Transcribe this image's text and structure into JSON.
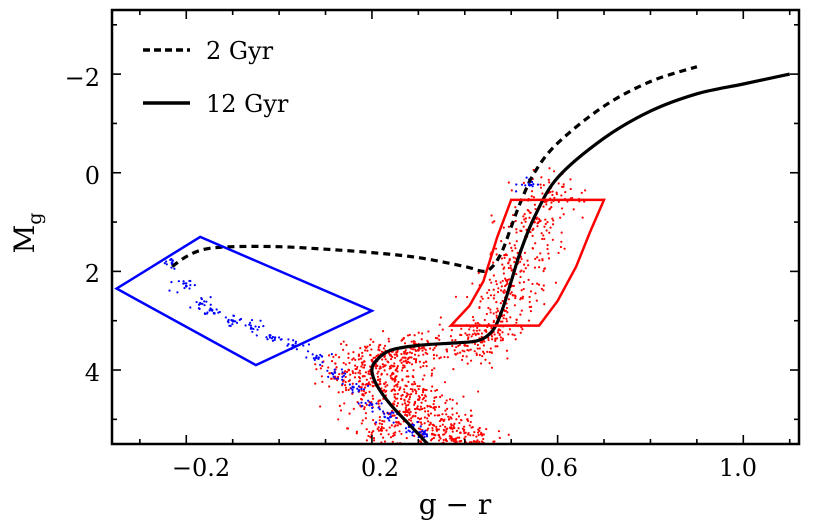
{
  "chart_data": {
    "type": "scatter",
    "title": "",
    "xlabel": "g − r",
    "ylabel_base": "M",
    "ylabel_sub": "g",
    "xlim": [
      -0.36,
      1.12
    ],
    "ylim": [
      5.5,
      -3.3
    ],
    "y_inverted": true,
    "x_ticks": [
      -0.2,
      0.2,
      0.6,
      1.0
    ],
    "x_tick_labels": [
      "−0.2",
      "0.2",
      "0.6",
      "1.0"
    ],
    "y_ticks": [
      -2,
      0,
      2,
      4
    ],
    "y_tick_labels": [
      "−2",
      "0",
      "2",
      "4"
    ],
    "legend_position": "top-left",
    "colors": {
      "red": "#ff0000",
      "blue": "#0000ff",
      "black": "#000000"
    },
    "series": [
      {
        "name": "2 Gyr",
        "kind": "line",
        "style": "dashed",
        "x": [
          -0.23,
          -0.2,
          -0.16,
          -0.1,
          0.0,
          0.1,
          0.2,
          0.3,
          0.4,
          0.44,
          0.46,
          0.48,
          0.5,
          0.52,
          0.55,
          0.6,
          0.7,
          0.8,
          0.9
        ],
        "y": [
          1.9,
          1.7,
          1.55,
          1.5,
          1.5,
          1.55,
          1.62,
          1.72,
          1.9,
          2.0,
          1.9,
          1.6,
          1.1,
          0.6,
          0.0,
          -0.6,
          -1.35,
          -1.85,
          -2.15
        ]
      },
      {
        "name": "12 Gyr",
        "kind": "line",
        "style": "solid",
        "x": [
          0.32,
          0.28,
          0.24,
          0.21,
          0.2,
          0.21,
          0.24,
          0.3,
          0.38,
          0.43,
          0.46,
          0.48,
          0.5,
          0.52,
          0.55,
          0.6,
          0.7,
          0.8,
          0.9,
          1.0,
          1.1
        ],
        "y": [
          5.5,
          5.1,
          4.7,
          4.3,
          4.0,
          3.8,
          3.6,
          3.5,
          3.45,
          3.4,
          3.2,
          2.8,
          2.2,
          1.6,
          0.9,
          0.1,
          -0.7,
          -1.25,
          -1.6,
          -1.8,
          -2.0
        ]
      },
      {
        "name": "blue selection box",
        "kind": "polygon",
        "color": "blue",
        "x": [
          -0.35,
          -0.17,
          0.2,
          -0.05
        ],
        "y": [
          2.35,
          1.3,
          2.8,
          3.9
        ]
      },
      {
        "name": "red selection box",
        "kind": "polygon",
        "color": "red",
        "x": [
          0.37,
          0.41,
          0.44,
          0.47,
          0.5,
          0.7,
          0.67,
          0.64,
          0.6,
          0.56
        ],
        "y": [
          3.1,
          2.7,
          2.2,
          1.3,
          0.55,
          0.55,
          1.2,
          1.9,
          2.6,
          3.1
        ]
      },
      {
        "name": "red stars",
        "kind": "points",
        "color": "red",
        "description_free": true,
        "x": [
          0.15,
          0.2,
          0.25,
          0.3,
          0.35,
          0.22,
          0.28,
          0.33,
          0.38,
          0.42,
          0.18,
          0.24,
          0.3,
          0.4,
          0.45,
          0.48,
          0.5,
          0.52,
          0.55,
          0.58
        ],
        "y": [
          4.0,
          3.8,
          4.2,
          4.6,
          5.0,
          5.2,
          4.8,
          5.3,
          5.4,
          5.45,
          4.5,
          3.7,
          3.6,
          3.5,
          3.3,
          2.9,
          2.3,
          1.7,
          1.0,
          0.4
        ]
      },
      {
        "name": "blue stars",
        "kind": "points",
        "color": "blue",
        "x": [
          -0.23,
          -0.2,
          -0.17,
          -0.14,
          -0.1,
          -0.06,
          -0.02,
          0.03,
          0.08,
          0.12,
          0.16,
          0.2,
          0.24,
          0.28,
          0.31,
          0.54
        ],
        "y": [
          1.85,
          2.3,
          2.65,
          2.85,
          3.0,
          3.15,
          3.3,
          3.5,
          3.75,
          4.05,
          4.35,
          4.7,
          4.95,
          5.15,
          5.3,
          0.25
        ]
      }
    ]
  }
}
